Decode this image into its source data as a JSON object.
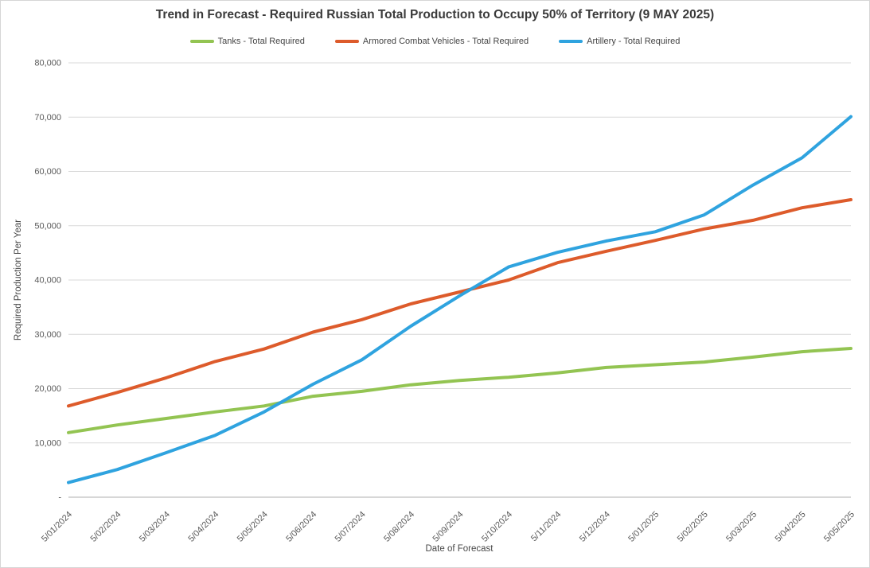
{
  "chart_data": {
    "type": "line",
    "title": "Trend in Forecast - Required Russian Total Production to Occupy 50% of Territory (9 MAY 2025)",
    "xlabel": "Date of Forecast",
    "ylabel": "Required Production Per Year",
    "categories": [
      "5/01/2024",
      "5/02/2024",
      "5/03/2024",
      "5/04/2024",
      "5/05/2024",
      "5/06/2024",
      "5/07/2024",
      "5/08/2024",
      "5/09/2024",
      "5/10/2024",
      "5/11/2024",
      "5/12/2024",
      "5/01/2025",
      "5/02/2025",
      "5/03/2025",
      "5/04/2025",
      "5/05/2025"
    ],
    "series": [
      {
        "name": "Tanks - Total Required",
        "color": "#93c452",
        "values": [
          11900,
          13300,
          14500,
          15700,
          16800,
          18600,
          19500,
          20700,
          21500,
          22100,
          22900,
          23900,
          24400,
          24900,
          25800,
          26800,
          27400
        ]
      },
      {
        "name": "Armored Combat Vehicles - Total Required",
        "color": "#dd5b2b",
        "values": [
          16800,
          19300,
          22000,
          25000,
          27300,
          30400,
          32700,
          35600,
          37800,
          40000,
          43200,
          45300,
          47300,
          49400,
          51000,
          53300,
          54800
        ]
      },
      {
        "name": "Artillery - Total Required",
        "color": "#2fa3df",
        "values": [
          2700,
          5100,
          8200,
          11400,
          15700,
          20800,
          25300,
          31500,
          37100,
          42400,
          45100,
          47200,
          48900,
          52000,
          57500,
          62500,
          70100
        ]
      }
    ],
    "ylim": [
      0,
      80000
    ],
    "y_tick_step": 10000,
    "y_tick_labels": [
      "-",
      "10,000",
      "20,000",
      "30,000",
      "40,000",
      "50,000",
      "60,000",
      "70,000",
      "80,000"
    ],
    "grid": true,
    "legend_position": "top",
    "x_label_rotation_deg": 45
  },
  "colors": {
    "gridline": "#d9d9d9",
    "axis_line": "#bfbfbf",
    "title_text": "#3a3a3a",
    "tick_text": "#595959",
    "border": "#d6d6d6"
  }
}
